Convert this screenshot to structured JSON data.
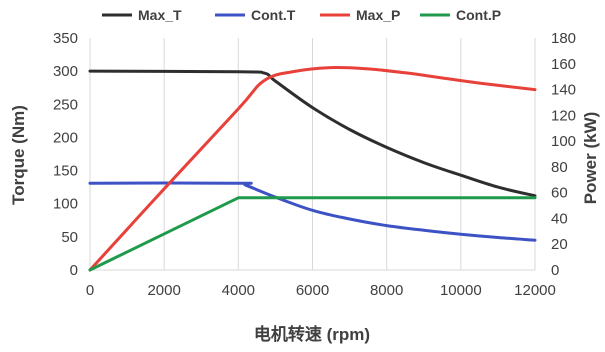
{
  "chart_data": {
    "type": "line",
    "xlabel": "电机转速 (rpm)",
    "ylabel_left": "Torque (Nm)",
    "ylabel_right": "Power (kW)",
    "xlim": [
      0,
      12000
    ],
    "xticks": [
      0,
      2000,
      4000,
      6000,
      8000,
      10000,
      12000
    ],
    "ylim_left": [
      0,
      350
    ],
    "yticks_left": [
      0,
      50,
      100,
      150,
      200,
      250,
      300,
      350
    ],
    "ylim_right": [
      0,
      180
    ],
    "yticks_right": [
      0,
      20,
      40,
      60,
      80,
      100,
      120,
      140,
      160,
      180
    ],
    "grid": "vertical",
    "legend_position": "top",
    "series": [
      {
        "name": "Max_T",
        "axis": "left",
        "color": "#2e2e2e",
        "x": [
          0,
          4000,
          4700,
          5000,
          6000,
          7000,
          8000,
          9000,
          10000,
          11000,
          12000
        ],
        "y": [
          300,
          299,
          297,
          285,
          245,
          212,
          185,
          162,
          143,
          125,
          112
        ]
      },
      {
        "name": "Cont.T",
        "axis": "left",
        "color": "#3d52c4",
        "x": [
          0,
          4000,
          4200,
          5000,
          6000,
          7000,
          8000,
          9000,
          10000,
          11000,
          12000
        ],
        "y": [
          131,
          131,
          128,
          110,
          90,
          77,
          67,
          60,
          54,
          49,
          45
        ]
      },
      {
        "name": "Max_P",
        "axis": "right",
        "color": "#e8413a",
        "x": [
          0,
          2000,
          4000,
          4700,
          5500,
          6500,
          7500,
          8500,
          9500,
          10500,
          12000
        ],
        "y": [
          0,
          63,
          125,
          147,
          154,
          157,
          156,
          153,
          149,
          145,
          140
        ]
      },
      {
        "name": "Cont.P",
        "axis": "right",
        "color": "#1f9a4c",
        "x": [
          0,
          4000,
          12000
        ],
        "y": [
          0,
          56,
          56
        ]
      }
    ]
  }
}
